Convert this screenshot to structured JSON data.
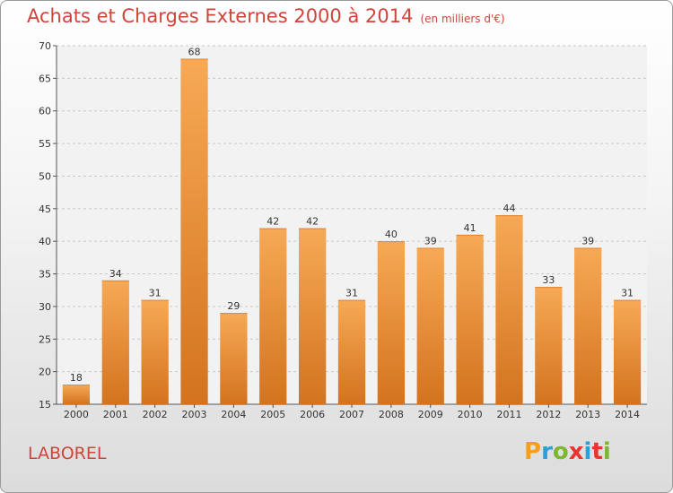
{
  "title": "Achats et Charges Externes 2000 à 2014",
  "unit": "(en milliers d'€)",
  "town": "LABOREL",
  "logo": {
    "text": "Proxiti",
    "letters": [
      "P",
      "r",
      "o",
      "x",
      "i",
      "t",
      "i"
    ],
    "colors": [
      "#f5a01a",
      "#2a9fd8",
      "#7cb82f",
      "#e8352e",
      "#2a9fd8",
      "#e8352e",
      "#7cb82f"
    ]
  },
  "chart_data": {
    "type": "bar",
    "title": "Achats et Charges Externes 2000 à 2014",
    "subtitle": "(en milliers d'€)",
    "categories": [
      "2000",
      "2001",
      "2002",
      "2003",
      "2004",
      "2005",
      "2006",
      "2007",
      "2008",
      "2009",
      "2010",
      "2011",
      "2012",
      "2013",
      "2014"
    ],
    "values": [
      18,
      34,
      31,
      68,
      29,
      42,
      42,
      31,
      40,
      39,
      41,
      44,
      33,
      39,
      31
    ],
    "ylim": [
      15,
      70
    ],
    "yticks": [
      15,
      20,
      25,
      30,
      35,
      40,
      45,
      50,
      55,
      60,
      65,
      70
    ],
    "grid": "horizontal-dashed",
    "bar_color": "#f0a050",
    "bar_color_dark": "#d07020",
    "xlabel": "",
    "ylabel": ""
  }
}
